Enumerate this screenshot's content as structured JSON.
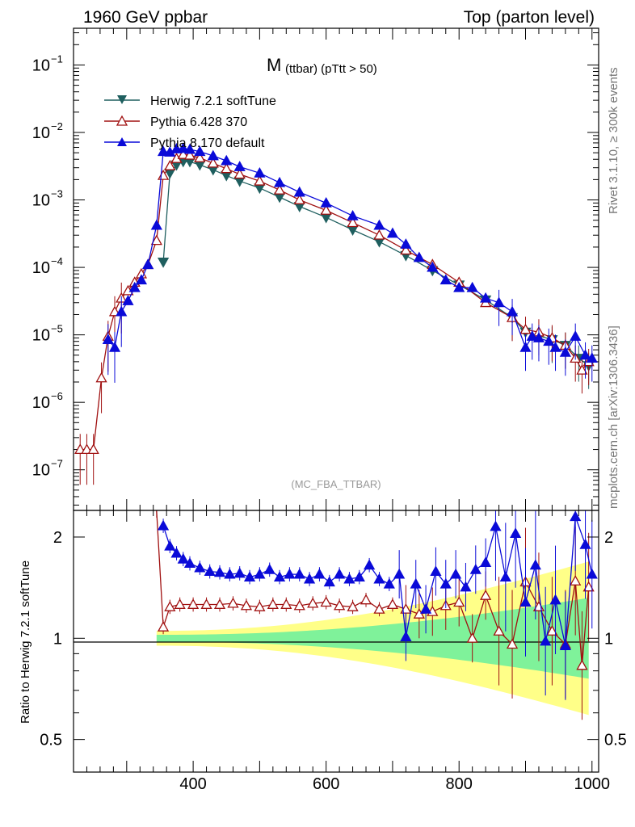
{
  "header": {
    "left": "1960 GeV ppbar",
    "right": "Top (parton level)",
    "side_top": "Rivet 3.1.10, ≥ 300k events",
    "side_bottom": "mcplots.cern.ch [arXiv:1306.3436]"
  },
  "chart_data": {
    "type": "line",
    "title_main": "M",
    "title_sub": "(ttbar) (pTtt > 50)",
    "watermark": "(MC_FBA_TTBAR)",
    "xlabel": "",
    "ylabel_ratio": "Ratio to Herwig 7.2.1 softTune",
    "xlim": [
      220,
      1010
    ],
    "ylim": [
      2.5e-08,
      0.35
    ],
    "yscale": "log",
    "ratio_ylim": [
      0.4,
      2.4
    ],
    "xticks": [
      "400",
      "600",
      "800",
      "1000"
    ],
    "xtick_values": [
      400,
      600,
      800,
      1000
    ],
    "yticks": [
      {
        "base": "10",
        "exp": "−1",
        "value": 0.1
      },
      {
        "base": "10",
        "exp": "−2",
        "value": 0.01
      },
      {
        "base": "10",
        "exp": "−3",
        "value": 0.001
      },
      {
        "base": "10",
        "exp": "−4",
        "value": 0.0001
      },
      {
        "base": "10",
        "exp": "−5",
        "value": 1e-05
      },
      {
        "base": "10",
        "exp": "−6",
        "value": 1e-06
      },
      {
        "base": "10",
        "exp": "−7",
        "value": 1e-07
      }
    ],
    "ratio_yticks": [
      {
        "label": "2",
        "value": 2
      },
      {
        "label": "1",
        "value": 1
      },
      {
        "label": "0.5",
        "value": 0.5
      }
    ],
    "legend": [
      {
        "name": "Herwig 7.2.1 softTune",
        "color": "#1f5f5f",
        "marker": "triangle-down"
      },
      {
        "name": "Pythia 6.428 370",
        "color": "#a01010",
        "marker": "triangle-up-open"
      },
      {
        "name": "Pythia 8.170 default",
        "color": "#0a0ad8",
        "marker": "triangle-up"
      }
    ],
    "colors": {
      "herwig": "#1f5f5f",
      "pythia6": "#a01010",
      "pythia8": "#0a0ad8",
      "band_inner": "#7ff29a",
      "band_outer": "#ffff88"
    },
    "series": [
      {
        "name": "Herwig 7.2.1 softTune",
        "points": [
          [
            355,
            0.00012
          ],
          [
            365,
            0.0025
          ],
          [
            375,
            0.0033
          ],
          [
            385,
            0.0037
          ],
          [
            395,
            0.0037
          ],
          [
            410,
            0.0033
          ],
          [
            430,
            0.0028
          ],
          [
            450,
            0.0023
          ],
          [
            470,
            0.0019
          ],
          [
            500,
            0.0015
          ],
          [
            530,
            0.0011
          ],
          [
            560,
            0.0008
          ],
          [
            600,
            0.00055
          ],
          [
            640,
            0.00036
          ],
          [
            680,
            0.00024
          ],
          [
            720,
            0.00015
          ],
          [
            760,
            9e-05
          ],
          [
            800,
            5.5e-05
          ],
          [
            840,
            3.3e-05
          ],
          [
            880,
            1.8e-05
          ],
          [
            900,
            1.1e-05
          ],
          [
            940,
            8.5e-06
          ],
          [
            960,
            7e-06
          ],
          [
            980,
            4.5e-06
          ],
          [
            995,
            3.5e-06
          ]
        ]
      },
      {
        "name": "Pythia 6.428 370",
        "points": [
          [
            230,
            2e-07
          ],
          [
            240,
            2e-07
          ],
          [
            250,
            2e-07
          ],
          [
            262,
            2.3e-06
          ],
          [
            272,
            9.5e-06
          ],
          [
            282,
            2.2e-05
          ],
          [
            292,
            3.5e-05
          ],
          [
            302,
            4.5e-05
          ],
          [
            312,
            6e-05
          ],
          [
            322,
            8e-05
          ],
          [
            332,
            0.00011
          ],
          [
            345,
            0.00025
          ],
          [
            355,
            0.0023
          ],
          [
            365,
            0.0032
          ],
          [
            375,
            0.0041
          ],
          [
            385,
            0.0047
          ],
          [
            395,
            0.0046
          ],
          [
            410,
            0.0042
          ],
          [
            430,
            0.0035
          ],
          [
            450,
            0.0029
          ],
          [
            470,
            0.0024
          ],
          [
            500,
            0.0019
          ],
          [
            530,
            0.0014
          ],
          [
            560,
            0.001
          ],
          [
            600,
            0.0007
          ],
          [
            640,
            0.00046
          ],
          [
            680,
            0.0003
          ],
          [
            720,
            0.00018
          ],
          [
            760,
            0.00011
          ],
          [
            800,
            6e-05
          ],
          [
            840,
            3e-05
          ],
          [
            880,
            1.8e-05
          ],
          [
            900,
            1.2e-05
          ],
          [
            920,
            1.1e-05
          ],
          [
            940,
            9e-06
          ],
          [
            960,
            7e-06
          ],
          [
            975,
            4.5e-06
          ],
          [
            985,
            3e-06
          ],
          [
            995,
            4e-06
          ]
        ]
      },
      {
        "name": "Pythia 8.170 default",
        "points": [
          [
            272,
            8.5e-06
          ],
          [
            282,
            6.5e-06
          ],
          [
            292,
            2.2e-05
          ],
          [
            302,
            3.2e-05
          ],
          [
            312,
            5e-05
          ],
          [
            322,
            6.5e-05
          ],
          [
            332,
            0.00011
          ],
          [
            345,
            0.00042
          ],
          [
            355,
            0.0052
          ],
          [
            365,
            0.0051
          ],
          [
            375,
            0.0057
          ],
          [
            385,
            0.0058
          ],
          [
            395,
            0.0056
          ],
          [
            410,
            0.0052
          ],
          [
            430,
            0.0045
          ],
          [
            450,
            0.0038
          ],
          [
            470,
            0.0031
          ],
          [
            500,
            0.0025
          ],
          [
            530,
            0.0018
          ],
          [
            560,
            0.0013
          ],
          [
            600,
            0.0009
          ],
          [
            640,
            0.00058
          ],
          [
            680,
            0.00042
          ],
          [
            700,
            0.00032
          ],
          [
            720,
            0.00022
          ],
          [
            740,
            0.00014
          ],
          [
            760,
            0.0001
          ],
          [
            780,
            6.5e-05
          ],
          [
            800,
            5e-05
          ],
          [
            820,
            5e-05
          ],
          [
            840,
            3.5e-05
          ],
          [
            860,
            3e-05
          ],
          [
            880,
            2.2e-05
          ],
          [
            900,
            6.5e-06
          ],
          [
            910,
            9.5e-06
          ],
          [
            920,
            9e-06
          ],
          [
            935,
            8e-06
          ],
          [
            945,
            6.5e-06
          ],
          [
            960,
            5.5e-06
          ],
          [
            975,
            9.5e-06
          ],
          [
            990,
            5e-06
          ],
          [
            1000,
            4.5e-06
          ]
        ]
      }
    ],
    "ratio_series": [
      {
        "name": "Pythia 6.428 370",
        "points": [
          [
            345,
            2.4
          ],
          [
            355,
            1.08
          ],
          [
            365,
            1.24
          ],
          [
            380,
            1.26
          ],
          [
            400,
            1.26
          ],
          [
            420,
            1.26
          ],
          [
            440,
            1.26
          ],
          [
            460,
            1.27
          ],
          [
            480,
            1.25
          ],
          [
            500,
            1.24
          ],
          [
            520,
            1.26
          ],
          [
            540,
            1.26
          ],
          [
            560,
            1.25
          ],
          [
            580,
            1.27
          ],
          [
            600,
            1.28
          ],
          [
            620,
            1.25
          ],
          [
            640,
            1.24
          ],
          [
            660,
            1.3
          ],
          [
            680,
            1.22
          ],
          [
            700,
            1.26
          ],
          [
            720,
            1.22
          ],
          [
            740,
            1.18
          ],
          [
            760,
            1.2
          ],
          [
            780,
            1.25
          ],
          [
            800,
            1.28
          ],
          [
            820,
            1.0
          ],
          [
            840,
            1.34
          ],
          [
            860,
            1.05
          ],
          [
            880,
            0.96
          ],
          [
            900,
            1.47
          ],
          [
            920,
            1.24
          ],
          [
            940,
            1.05
          ],
          [
            960,
            0.96
          ],
          [
            975,
            1.48
          ],
          [
            985,
            0.83
          ],
          [
            995,
            1.42
          ]
        ]
      },
      {
        "name": "Pythia 8.170 default",
        "points": [
          [
            355,
            2.16
          ],
          [
            365,
            1.88
          ],
          [
            375,
            1.79
          ],
          [
            385,
            1.72
          ],
          [
            395,
            1.67
          ],
          [
            410,
            1.62
          ],
          [
            425,
            1.58
          ],
          [
            440,
            1.57
          ],
          [
            455,
            1.55
          ],
          [
            470,
            1.56
          ],
          [
            485,
            1.52
          ],
          [
            500,
            1.55
          ],
          [
            515,
            1.6
          ],
          [
            530,
            1.52
          ],
          [
            545,
            1.55
          ],
          [
            560,
            1.55
          ],
          [
            575,
            1.5
          ],
          [
            590,
            1.55
          ],
          [
            605,
            1.47
          ],
          [
            620,
            1.55
          ],
          [
            635,
            1.5
          ],
          [
            650,
            1.52
          ],
          [
            665,
            1.65
          ],
          [
            680,
            1.5
          ],
          [
            695,
            1.45
          ],
          [
            710,
            1.55
          ],
          [
            720,
            1.01
          ],
          [
            735,
            1.45
          ],
          [
            750,
            1.22
          ],
          [
            765,
            1.58
          ],
          [
            780,
            1.45
          ],
          [
            795,
            1.55
          ],
          [
            810,
            1.42
          ],
          [
            825,
            1.6
          ],
          [
            840,
            1.68
          ],
          [
            855,
            2.15
          ],
          [
            870,
            1.52
          ],
          [
            885,
            2.05
          ],
          [
            900,
            1.28
          ],
          [
            915,
            1.65
          ],
          [
            930,
            0.98
          ],
          [
            945,
            1.3
          ],
          [
            960,
            0.95
          ],
          [
            975,
            2.3
          ],
          [
            990,
            1.9
          ],
          [
            1000,
            1.55
          ]
        ]
      }
    ]
  }
}
